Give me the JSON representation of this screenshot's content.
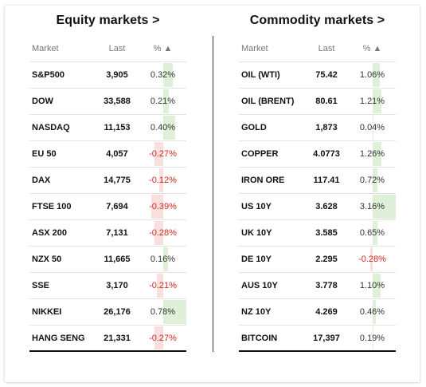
{
  "equity": {
    "title": "Equity markets >",
    "headers": {
      "market": "Market",
      "last": "Last",
      "pct": "% ▲"
    },
    "rows": [
      {
        "name": "S&P500",
        "last": "3,905",
        "pct": "0.32%",
        "value": 0.32
      },
      {
        "name": "DOW",
        "last": "33,588",
        "pct": "0.21%",
        "value": 0.21
      },
      {
        "name": "NASDAQ",
        "last": "11,153",
        "pct": "0.40%",
        "value": 0.4
      },
      {
        "name": "EU 50",
        "last": "4,057",
        "pct": "-0.27%",
        "value": -0.27
      },
      {
        "name": "DAX",
        "last": "14,775",
        "pct": "-0.12%",
        "value": -0.12
      },
      {
        "name": "FTSE 100",
        "last": "7,694",
        "pct": "-0.39%",
        "value": -0.39
      },
      {
        "name": "ASX 200",
        "last": "7,131",
        "pct": "-0.28%",
        "value": -0.28
      },
      {
        "name": "NZX 50",
        "last": "11,665",
        "pct": "0.16%",
        "value": 0.16
      },
      {
        "name": "SSE",
        "last": "3,170",
        "pct": "-0.21%",
        "value": -0.21
      },
      {
        "name": "NIKKEI",
        "last": "26,176",
        "pct": "0.78%",
        "value": 0.78
      },
      {
        "name": "HANG SENG",
        "last": "21,331",
        "pct": "-0.27%",
        "value": -0.27
      }
    ]
  },
  "commodity": {
    "title": "Commodity markets >",
    "headers": {
      "market": "Market",
      "last": "Last",
      "pct": "% ▲"
    },
    "rows": [
      {
        "name": "OIL (WTI)",
        "last": "75.42",
        "pct": "1.06%",
        "value": 1.06
      },
      {
        "name": "OIL (BRENT)",
        "last": "80.61",
        "pct": "1.21%",
        "value": 1.21
      },
      {
        "name": "GOLD",
        "last": "1,873",
        "pct": "0.04%",
        "value": 0.04
      },
      {
        "name": "COPPER",
        "last": "4.0773",
        "pct": "1.26%",
        "value": 1.26
      },
      {
        "name": "IRON ORE",
        "last": "117.41",
        "pct": "0.72%",
        "value": 0.72
      },
      {
        "name": "US 10Y",
        "last": "3.628",
        "pct": "3.16%",
        "value": 3.16
      },
      {
        "name": "UK 10Y",
        "last": "3.585",
        "pct": "0.65%",
        "value": 0.65
      },
      {
        "name": "DE 10Y",
        "last": "2.295",
        "pct": "-0.28%",
        "value": -0.28
      },
      {
        "name": "AUS 10Y",
        "last": "3.778",
        "pct": "1.10%",
        "value": 1.1
      },
      {
        "name": "NZ 10Y",
        "last": "4.269",
        "pct": "0.46%",
        "value": 0.46
      },
      {
        "name": "BITCOIN",
        "last": "17,397",
        "pct": "0.19%",
        "value": 0.19
      }
    ]
  },
  "colors": {
    "positive_bar": "#dff0d8",
    "negative_bar": "#f9e0de",
    "negative_text": "#d0271d"
  }
}
